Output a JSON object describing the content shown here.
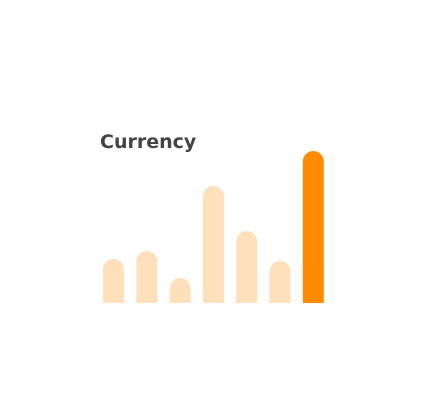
{
  "chart_data": {
    "type": "bar",
    "title": "Currency",
    "categories": [
      null,
      null,
      null,
      null,
      null,
      null,
      null
    ],
    "values": [
      44,
      52,
      25,
      117,
      72,
      42,
      152
    ],
    "colors": [
      "#fee0ba",
      "#fee0ba",
      "#fee0ba",
      "#fee0ba",
      "#fee0ba",
      "#fee0ba",
      "#ff8c00"
    ],
    "ylim": [
      0,
      160
    ]
  }
}
